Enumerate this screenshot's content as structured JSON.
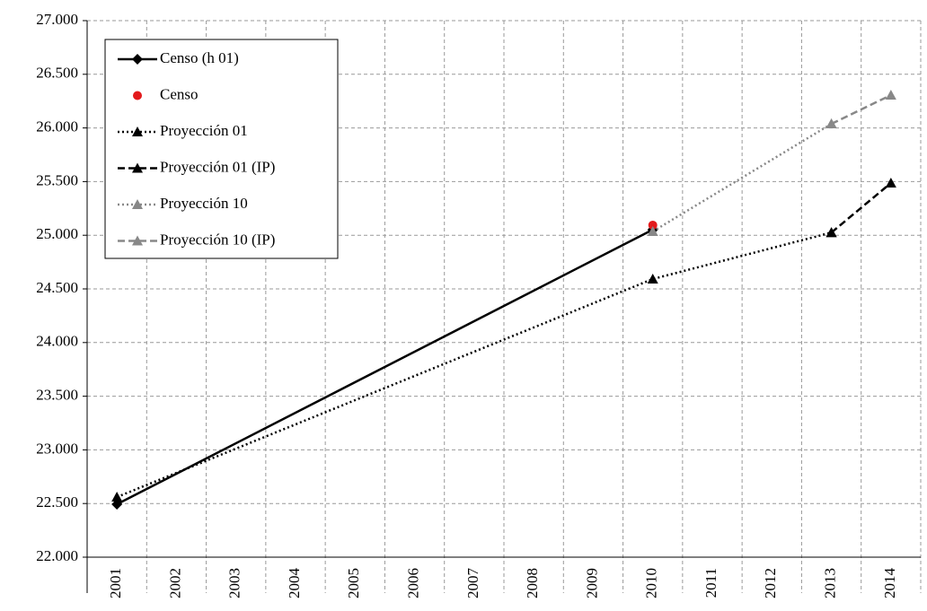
{
  "chart_data": {
    "type": "line",
    "categories": [
      "2001",
      "2002",
      "2003",
      "2004",
      "2005",
      "2006",
      "2007",
      "2008",
      "2009",
      "2010",
      "2011",
      "2012",
      "2013",
      "2014"
    ],
    "ylim": [
      22000,
      27000
    ],
    "yticks": [
      {
        "value": 22000,
        "label": "22.000"
      },
      {
        "value": 22500,
        "label": "22.500"
      },
      {
        "value": 23000,
        "label": "23.000"
      },
      {
        "value": 23500,
        "label": "23.500"
      },
      {
        "value": 24000,
        "label": "24.000"
      },
      {
        "value": 24500,
        "label": "24.500"
      },
      {
        "value": 25000,
        "label": "25.000"
      },
      {
        "value": 25500,
        "label": "25.500"
      },
      {
        "value": 26000,
        "label": "26.000"
      },
      {
        "value": 26500,
        "label": "26.500"
      },
      {
        "value": 27000,
        "label": "27.000"
      }
    ],
    "grid": true,
    "span_gaps": true,
    "legend": "upper left",
    "series": [
      {
        "name": "Censo (h 01)",
        "color": "#000000",
        "dash": "solid",
        "marker": "diamond",
        "line": true,
        "values": [
          22493,
          null,
          null,
          null,
          null,
          null,
          null,
          null,
          null,
          25052,
          null,
          null,
          null,
          null
        ]
      },
      {
        "name": "Censo",
        "color": "#e31a1c",
        "dash": "solid",
        "marker": "circle",
        "line": false,
        "values": [
          null,
          null,
          null,
          null,
          null,
          null,
          null,
          null,
          null,
          25094,
          null,
          null,
          null,
          null
        ]
      },
      {
        "name": "Proyección 01",
        "color": "#000000",
        "dash": "dotted",
        "marker": "triangle",
        "line": true,
        "values": [
          22560,
          null,
          null,
          null,
          null,
          null,
          null,
          null,
          null,
          24592,
          null,
          null,
          25025,
          null
        ]
      },
      {
        "name": "Proyección 01 (IP)",
        "color": "#000000",
        "dash": "dashed",
        "marker": "triangle",
        "line": true,
        "values": [
          null,
          null,
          null,
          null,
          null,
          null,
          null,
          null,
          null,
          null,
          null,
          null,
          25025,
          25487
        ]
      },
      {
        "name": "Proyección 10",
        "color": "#888888",
        "dash": "dotted",
        "marker": "triangle",
        "line": true,
        "values": [
          null,
          null,
          null,
          null,
          null,
          null,
          null,
          null,
          null,
          25035,
          null,
          null,
          26038,
          null
        ]
      },
      {
        "name": "Proyección 10 (IP)",
        "color": "#888888",
        "dash": "dashed",
        "marker": "triangle",
        "line": true,
        "values": [
          null,
          null,
          null,
          null,
          null,
          null,
          null,
          null,
          null,
          null,
          null,
          null,
          26038,
          26306
        ]
      }
    ]
  }
}
